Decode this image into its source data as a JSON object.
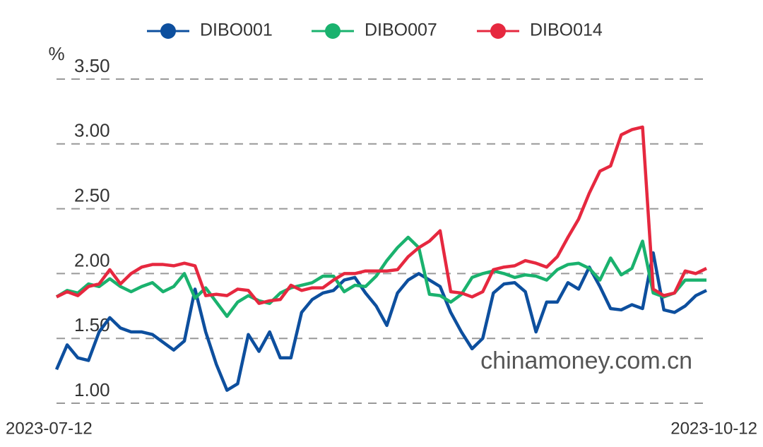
{
  "chart_data": {
    "type": "line",
    "y_unit": "%",
    "watermark": "chinamoney.com.cn",
    "categories": [
      "2023-07-12",
      null,
      null,
      null,
      null,
      null,
      null,
      null,
      null,
      null,
      null,
      null,
      null,
      null,
      null,
      null,
      null,
      null,
      null,
      null,
      null,
      null,
      null,
      null,
      null,
      null,
      null,
      null,
      null,
      null,
      null,
      null,
      null,
      null,
      null,
      null,
      null,
      null,
      null,
      null,
      null,
      null,
      null,
      null,
      null,
      null,
      null,
      null,
      null,
      null,
      null,
      null,
      null,
      null,
      null,
      null,
      null,
      null,
      null,
      null,
      null,
      "2023-10-12"
    ],
    "series": [
      {
        "name": "DIBO001",
        "color": "#0d4f9e",
        "values": [
          1.26,
          1.45,
          1.35,
          1.33,
          1.55,
          1.66,
          1.58,
          1.55,
          1.55,
          1.53,
          1.47,
          1.41,
          1.48,
          1.88,
          1.55,
          1.3,
          1.1,
          1.15,
          1.53,
          1.4,
          1.55,
          1.35,
          1.35,
          1.7,
          1.8,
          1.85,
          1.87,
          1.95,
          1.97,
          1.85,
          1.75,
          1.6,
          1.85,
          1.95,
          2.0,
          1.95,
          1.9,
          1.7,
          1.55,
          1.42,
          1.5,
          1.85,
          1.92,
          1.93,
          1.86,
          1.55,
          1.78,
          1.78,
          1.93,
          1.88,
          2.05,
          1.9,
          1.73,
          1.72,
          1.76,
          1.73,
          2.16,
          1.72,
          1.7,
          1.75,
          1.83,
          1.87
        ]
      },
      {
        "name": "DIBO007",
        "color": "#1ab26e",
        "values": [
          1.82,
          1.87,
          1.85,
          1.92,
          1.9,
          1.96,
          1.9,
          1.86,
          1.9,
          1.93,
          1.86,
          1.9,
          2.0,
          1.81,
          1.89,
          1.78,
          1.67,
          1.78,
          1.83,
          1.79,
          1.77,
          1.85,
          1.89,
          1.91,
          1.93,
          1.98,
          1.98,
          1.86,
          1.91,
          1.9,
          1.98,
          2.1,
          2.2,
          2.28,
          2.2,
          1.84,
          1.83,
          1.78,
          1.84,
          1.97,
          2.0,
          2.02,
          2.0,
          1.97,
          1.99,
          1.98,
          1.95,
          2.03,
          2.07,
          2.08,
          2.04,
          1.95,
          2.12,
          1.99,
          2.04,
          2.25,
          1.85,
          1.82,
          1.85,
          1.95,
          1.95,
          1.95
        ]
      },
      {
        "name": "DIBO014",
        "color": "#e6283f",
        "values": [
          1.82,
          1.86,
          1.83,
          1.9,
          1.92,
          2.03,
          1.92,
          2.0,
          2.05,
          2.07,
          2.07,
          2.06,
          2.08,
          2.06,
          1.83,
          1.84,
          1.83,
          1.88,
          1.87,
          1.77,
          1.79,
          1.8,
          1.91,
          1.87,
          1.89,
          1.89,
          1.95,
          2.0,
          2.0,
          2.02,
          2.02,
          2.02,
          2.03,
          2.13,
          2.2,
          2.25,
          2.33,
          1.86,
          1.85,
          1.82,
          1.86,
          2.03,
          2.05,
          2.06,
          2.1,
          2.08,
          2.05,
          2.13,
          2.28,
          2.42,
          2.62,
          2.79,
          2.83,
          3.07,
          3.11,
          3.13,
          1.88,
          1.83,
          1.85,
          2.02,
          2.0,
          2.04
        ]
      }
    ],
    "ylim": [
      1.0,
      3.5
    ],
    "yticks": [
      {
        "value": 1,
        "label": "1.00"
      },
      {
        "value": 1.5,
        "label": "1.50"
      },
      {
        "value": 2,
        "label": "2.00"
      },
      {
        "value": 2.5,
        "label": "2.50"
      },
      {
        "value": 3,
        "label": "3.00"
      },
      {
        "value": 3.5,
        "label": "3.50"
      }
    ],
    "grid": true,
    "legend": "top"
  }
}
